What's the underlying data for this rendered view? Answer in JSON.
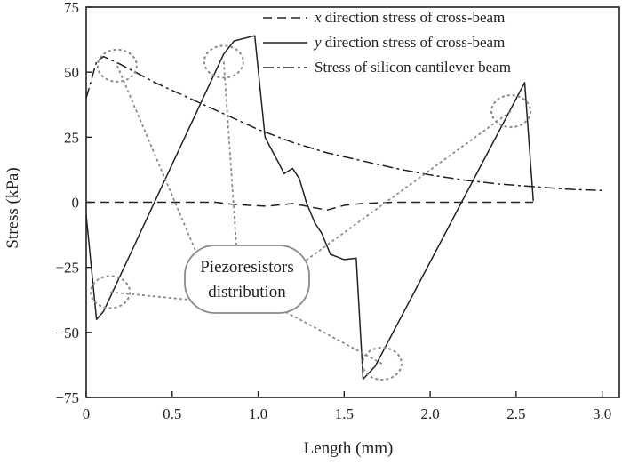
{
  "chart_data": {
    "type": "line",
    "xlabel": "Length (mm)",
    "ylabel": "Stress (kPa)",
    "xlim": [
      0,
      3.1
    ],
    "ylim": [
      -75,
      75
    ],
    "xticks": [
      0,
      0.5,
      1.0,
      1.5,
      2.0,
      2.5,
      3.0
    ],
    "xtick_labels": [
      "0",
      "0.5",
      "1.0",
      "1.5",
      "2.0",
      "2.5",
      "3.0"
    ],
    "yticks": [
      -75,
      -50,
      -25,
      0,
      25,
      50,
      75
    ],
    "ytick_labels": [
      "−75",
      "−50",
      "−25",
      "0",
      "25",
      "50",
      "75"
    ],
    "legend_position": "top-right",
    "series": [
      {
        "legend_prefix": "x",
        "legend_suffix": " direction stress of cross-beam",
        "style": "dashed",
        "color": "#222222",
        "points": [
          [
            0,
            0
          ],
          [
            0.2,
            0
          ],
          [
            0.4,
            0
          ],
          [
            0.6,
            0
          ],
          [
            0.75,
            0
          ],
          [
            0.85,
            -0.8
          ],
          [
            0.95,
            -1.2
          ],
          [
            1.05,
            -1.5
          ],
          [
            1.2,
            -0.5
          ],
          [
            1.28,
            -1.5
          ],
          [
            1.4,
            -3.0
          ],
          [
            1.5,
            -1.2
          ],
          [
            1.6,
            -0.5
          ],
          [
            1.8,
            0
          ],
          [
            2.2,
            0
          ],
          [
            2.6,
            0
          ]
        ]
      },
      {
        "legend_prefix": "y",
        "legend_suffix": " direction stress of cross-beam",
        "style": "solid",
        "color": "#222222",
        "points": [
          [
            0,
            -5
          ],
          [
            0.06,
            -45
          ],
          [
            0.1,
            -42
          ],
          [
            0.8,
            57
          ],
          [
            0.86,
            62
          ],
          [
            0.98,
            64
          ],
          [
            1.04,
            25
          ],
          [
            1.08,
            20
          ],
          [
            1.12,
            15
          ],
          [
            1.15,
            11
          ],
          [
            1.2,
            13
          ],
          [
            1.24,
            9
          ],
          [
            1.28,
            0
          ],
          [
            1.33,
            -8
          ],
          [
            1.37,
            -12
          ],
          [
            1.42,
            -20
          ],
          [
            1.5,
            -22
          ],
          [
            1.57,
            -21.5
          ],
          [
            1.61,
            -68
          ],
          [
            1.68,
            -63
          ],
          [
            2.55,
            46
          ],
          [
            2.6,
            0.5
          ]
        ]
      },
      {
        "legend_prefix": "",
        "legend_suffix": "Stress of silicon cantilever beam",
        "style": "dashdot",
        "color": "#222222",
        "points": [
          [
            0,
            40
          ],
          [
            0.03,
            47
          ],
          [
            0.06,
            54
          ],
          [
            0.1,
            56
          ],
          [
            0.2,
            53
          ],
          [
            0.4,
            46
          ],
          [
            0.6,
            40
          ],
          [
            0.8,
            34
          ],
          [
            1.0,
            28
          ],
          [
            1.2,
            23
          ],
          [
            1.4,
            19
          ],
          [
            1.6,
            16
          ],
          [
            1.8,
            13
          ],
          [
            2.0,
            10.5
          ],
          [
            2.2,
            8.5
          ],
          [
            2.4,
            7
          ],
          [
            2.6,
            6
          ],
          [
            2.8,
            5
          ],
          [
            3.0,
            4.5
          ]
        ]
      }
    ],
    "annotation": {
      "line1": "Piezoresistors",
      "line2": "distribution",
      "markers": [
        [
          0.18,
          52.5
        ],
        [
          0.8,
          54
        ],
        [
          0.14,
          -34.5
        ],
        [
          1.72,
          -62
        ],
        [
          2.47,
          35
        ]
      ]
    }
  }
}
